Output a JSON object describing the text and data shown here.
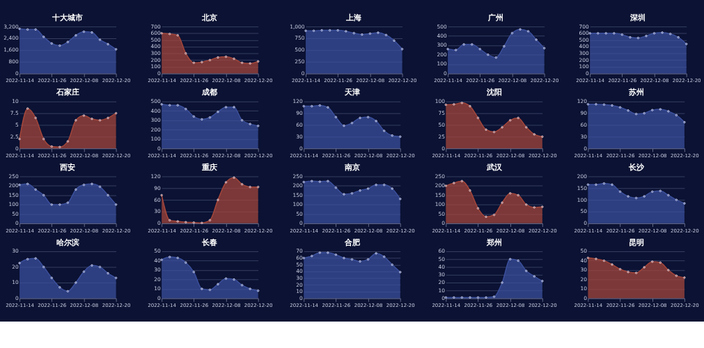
{
  "chart_data": [
    {
      "type": "area",
      "title": "十大城市",
      "x": [
        "2022-11-14",
        "2022-11-17",
        "2022-11-20",
        "2022-11-23",
        "2022-11-26",
        "2022-11-29",
        "2022-12-02",
        "2022-12-05",
        "2022-12-08",
        "2022-12-11",
        "2022-12-14",
        "2022-12-17",
        "2022-12-20"
      ],
      "series": [
        {
          "color": "#3b4f9c",
          "values": [
            3050,
            3000,
            3000,
            2500,
            2050,
            1900,
            2150,
            2600,
            2850,
            2800,
            2300,
            2000,
            1650
          ]
        }
      ],
      "ylim": [
        0,
        3200
      ],
      "yticks": [
        0,
        800,
        {
          "value": 1600,
          "label": "1,600"
        },
        {
          "value": 2400,
          "label": "2,400"
        },
        {
          "value": 3200,
          "label": "3,200"
        }
      ],
      "xlim": [
        "2022-11-14",
        "2022-12-20"
      ],
      "xticks": [
        "2022-11-14",
        "2022-11-26",
        "2022-12-08",
        "2022-12-20"
      ],
      "grid": "y",
      "marker": "circle"
    },
    {
      "type": "area",
      "title": "北京",
      "x": [
        "2022-11-14",
        "2022-11-17",
        "2022-11-20",
        "2022-11-23",
        "2022-11-26",
        "2022-11-29",
        "2022-12-02",
        "2022-12-05",
        "2022-12-08",
        "2022-12-11",
        "2022-12-14",
        "2022-12-17",
        "2022-12-20"
      ],
      "series": [
        {
          "color": "#a3463b",
          "values": [
            600,
            590,
            570,
            300,
            160,
            170,
            200,
            240,
            250,
            220,
            160,
            150,
            180
          ]
        }
      ],
      "ylim": [
        0,
        700
      ],
      "yticks": [
        0,
        100,
        200,
        300,
        400,
        500,
        600,
        700
      ],
      "xlim": [
        "2022-11-14",
        "2022-12-20"
      ],
      "xticks": [
        "2022-11-14",
        "2022-11-26",
        "2022-12-08",
        "2022-12-20"
      ],
      "grid": "y",
      "marker": "circle"
    },
    {
      "type": "area",
      "title": "上海",
      "x": [
        "2022-11-14",
        "2022-11-17",
        "2022-11-20",
        "2022-11-23",
        "2022-11-26",
        "2022-11-29",
        "2022-12-02",
        "2022-12-05",
        "2022-12-08",
        "2022-12-11",
        "2022-12-14",
        "2022-12-17",
        "2022-12-20"
      ],
      "series": [
        {
          "color": "#3b4f9c",
          "values": [
            910,
            910,
            920,
            920,
            920,
            900,
            860,
            830,
            850,
            870,
            820,
            700,
            520
          ]
        }
      ],
      "ylim": [
        0,
        1000
      ],
      "yticks": [
        0,
        250,
        500,
        750,
        {
          "value": 1000,
          "label": "1,000"
        }
      ],
      "xlim": [
        "2022-11-14",
        "2022-12-20"
      ],
      "xticks": [
        "2022-11-14",
        "2022-11-26",
        "2022-12-08",
        "2022-12-20"
      ],
      "grid": "y",
      "marker": "circle"
    },
    {
      "type": "area",
      "title": "广州",
      "x": [
        "2022-11-14",
        "2022-11-17",
        "2022-11-20",
        "2022-11-23",
        "2022-11-26",
        "2022-11-29",
        "2022-12-02",
        "2022-12-05",
        "2022-12-08",
        "2022-12-11",
        "2022-12-14",
        "2022-12-17",
        "2022-12-20"
      ],
      "series": [
        {
          "color": "#3b4f9c",
          "values": [
            260,
            250,
            310,
            310,
            260,
            200,
            170,
            290,
            430,
            470,
            450,
            360,
            270
          ]
        }
      ],
      "ylim": [
        0,
        500
      ],
      "yticks": [
        0,
        100,
        200,
        300,
        400,
        500
      ],
      "xlim": [
        "2022-11-14",
        "2022-12-20"
      ],
      "xticks": [
        "2022-11-14",
        "2022-11-26",
        "2022-12-08",
        "2022-12-20"
      ],
      "grid": "y",
      "marker": "circle"
    },
    {
      "type": "area",
      "title": "深圳",
      "x": [
        "2022-11-14",
        "2022-11-17",
        "2022-11-20",
        "2022-11-23",
        "2022-11-26",
        "2022-11-29",
        "2022-12-02",
        "2022-12-05",
        "2022-12-08",
        "2022-12-11",
        "2022-12-14",
        "2022-12-17",
        "2022-12-20"
      ],
      "series": [
        {
          "color": "#3b4f9c",
          "values": [
            600,
            600,
            600,
            600,
            580,
            540,
            530,
            560,
            600,
            610,
            590,
            540,
            440
          ]
        }
      ],
      "ylim": [
        0,
        700
      ],
      "yticks": [
        0,
        100,
        200,
        300,
        400,
        500,
        600,
        700
      ],
      "xlim": [
        "2022-11-14",
        "2022-12-20"
      ],
      "xticks": [
        "2022-11-14",
        "2022-11-26",
        "2022-12-08",
        "2022-12-20"
      ],
      "grid": "y",
      "marker": "circle"
    },
    {
      "type": "area",
      "title": "石家庄",
      "x": [
        "2022-11-14",
        "2022-11-17",
        "2022-11-20",
        "2022-11-23",
        "2022-11-26",
        "2022-11-29",
        "2022-12-02",
        "2022-12-05",
        "2022-12-08",
        "2022-12-11",
        "2022-12-14",
        "2022-12-17",
        "2022-12-20"
      ],
      "series": [
        {
          "color": "#a3463b",
          "values": [
            2,
            8.5,
            6.5,
            2,
            0.4,
            0.3,
            1.5,
            6,
            7,
            6.3,
            6,
            6.5,
            7.5
          ]
        }
      ],
      "ylim": [
        0,
        10
      ],
      "yticks": [
        0,
        2.5,
        5,
        7.5,
        10
      ],
      "xlim": [
        "2022-11-14",
        "2022-12-20"
      ],
      "xticks": [
        "2022-11-14",
        "2022-11-26",
        "2022-12-08",
        "2022-12-20"
      ],
      "grid": "y",
      "marker": "circle"
    },
    {
      "type": "area",
      "title": "成都",
      "x": [
        "2022-11-14",
        "2022-11-17",
        "2022-11-20",
        "2022-11-23",
        "2022-11-26",
        "2022-11-29",
        "2022-12-02",
        "2022-12-05",
        "2022-12-08",
        "2022-12-11",
        "2022-12-14",
        "2022-12-17",
        "2022-12-20"
      ],
      "series": [
        {
          "color": "#3b4f9c",
          "values": [
            470,
            460,
            460,
            420,
            340,
            310,
            330,
            390,
            440,
            440,
            300,
            260,
            240
          ]
        }
      ],
      "ylim": [
        0,
        500
      ],
      "yticks": [
        0,
        100,
        200,
        300,
        400,
        500
      ],
      "xlim": [
        "2022-11-14",
        "2022-12-20"
      ],
      "xticks": [
        "2022-11-14",
        "2022-11-26",
        "2022-12-08",
        "2022-12-20"
      ],
      "grid": "y",
      "marker": "circle"
    },
    {
      "type": "area",
      "title": "天津",
      "x": [
        "2022-11-14",
        "2022-11-17",
        "2022-11-20",
        "2022-11-23",
        "2022-11-26",
        "2022-11-29",
        "2022-12-02",
        "2022-12-05",
        "2022-12-08",
        "2022-12-11",
        "2022-12-14",
        "2022-12-17",
        "2022-12-20"
      ],
      "series": [
        {
          "color": "#3b4f9c",
          "values": [
            108,
            108,
            110,
            105,
            80,
            58,
            65,
            78,
            80,
            70,
            45,
            33,
            30
          ]
        }
      ],
      "ylim": [
        0,
        120
      ],
      "yticks": [
        0,
        30,
        60,
        90,
        120
      ],
      "xlim": [
        "2022-11-14",
        "2022-12-20"
      ],
      "xticks": [
        "2022-11-14",
        "2022-11-26",
        "2022-12-08",
        "2022-12-20"
      ],
      "grid": "y",
      "marker": "circle"
    },
    {
      "type": "area",
      "title": "沈阳",
      "x": [
        "2022-11-14",
        "2022-11-17",
        "2022-11-20",
        "2022-11-23",
        "2022-11-26",
        "2022-11-29",
        "2022-12-02",
        "2022-12-05",
        "2022-12-08",
        "2022-12-11",
        "2022-12-14",
        "2022-12-17",
        "2022-12-20"
      ],
      "series": [
        {
          "color": "#a3463b",
          "values": [
            93,
            94,
            97,
            90,
            65,
            40,
            35,
            45,
            60,
            65,
            45,
            30,
            25
          ]
        }
      ],
      "ylim": [
        0,
        100
      ],
      "yticks": [
        0,
        25,
        50,
        75,
        100
      ],
      "xlim": [
        "2022-11-14",
        "2022-12-20"
      ],
      "xticks": [
        "2022-11-14",
        "2022-11-26",
        "2022-12-08",
        "2022-12-20"
      ],
      "grid": "y",
      "marker": "circle"
    },
    {
      "type": "area",
      "title": "苏州",
      "x": [
        "2022-11-14",
        "2022-11-17",
        "2022-11-20",
        "2022-11-23",
        "2022-11-26",
        "2022-11-29",
        "2022-12-02",
        "2022-12-05",
        "2022-12-08",
        "2022-12-11",
        "2022-12-14",
        "2022-12-17",
        "2022-12-20"
      ],
      "series": [
        {
          "color": "#3b4f9c",
          "values": [
            113,
            113,
            112,
            110,
            105,
            97,
            88,
            90,
            98,
            100,
            95,
            85,
            67
          ]
        }
      ],
      "ylim": [
        0,
        120
      ],
      "yticks": [
        0,
        30,
        60,
        90,
        120
      ],
      "xlim": [
        "2022-11-14",
        "2022-12-20"
      ],
      "xticks": [
        "2022-11-14",
        "2022-11-26",
        "2022-12-08",
        "2022-12-20"
      ],
      "grid": "y",
      "marker": "circle"
    },
    {
      "type": "area",
      "title": "西安",
      "x": [
        "2022-11-14",
        "2022-11-17",
        "2022-11-20",
        "2022-11-23",
        "2022-11-26",
        "2022-11-29",
        "2022-12-02",
        "2022-12-05",
        "2022-12-08",
        "2022-12-11",
        "2022-12-14",
        "2022-12-17",
        "2022-12-20"
      ],
      "series": [
        {
          "color": "#3b4f9c",
          "values": [
            205,
            210,
            180,
            150,
            100,
            100,
            110,
            180,
            205,
            210,
            195,
            150,
            100
          ]
        }
      ],
      "ylim": [
        0,
        250
      ],
      "yticks": [
        0,
        50,
        100,
        150,
        200,
        250
      ],
      "xlim": [
        "2022-11-14",
        "2022-12-20"
      ],
      "xticks": [
        "2022-11-14",
        "2022-11-26",
        "2022-12-08",
        "2022-12-20"
      ],
      "grid": "y",
      "marker": "circle"
    },
    {
      "type": "area",
      "title": "重庆",
      "x": [
        "2022-11-14",
        "2022-11-17",
        "2022-11-20",
        "2022-11-23",
        "2022-11-26",
        "2022-11-29",
        "2022-12-02",
        "2022-12-05",
        "2022-12-08",
        "2022-12-11",
        "2022-12-14",
        "2022-12-17",
        "2022-12-20"
      ],
      "series": [
        {
          "color": "#a3463b",
          "values": [
            72,
            8,
            5,
            3,
            2,
            1,
            8,
            60,
            105,
            117,
            100,
            93,
            93
          ]
        }
      ],
      "ylim": [
        0,
        120
      ],
      "yticks": [
        0,
        30,
        60,
        90,
        120
      ],
      "xlim": [
        "2022-11-14",
        "2022-12-20"
      ],
      "xticks": [
        "2022-11-14",
        "2022-11-26",
        "2022-12-08",
        "2022-12-20"
      ],
      "grid": "y",
      "marker": "circle"
    },
    {
      "type": "area",
      "title": "南京",
      "x": [
        "2022-11-14",
        "2022-11-17",
        "2022-11-20",
        "2022-11-23",
        "2022-11-26",
        "2022-11-29",
        "2022-12-02",
        "2022-12-05",
        "2022-12-08",
        "2022-12-11",
        "2022-12-14",
        "2022-12-17",
        "2022-12-20"
      ],
      "series": [
        {
          "color": "#3b4f9c",
          "values": [
            220,
            225,
            222,
            225,
            190,
            155,
            160,
            175,
            185,
            205,
            205,
            185,
            130
          ]
        }
      ],
      "ylim": [
        0,
        250
      ],
      "yticks": [
        0,
        50,
        100,
        150,
        200,
        250
      ],
      "xlim": [
        "2022-11-14",
        "2022-12-20"
      ],
      "xticks": [
        "2022-11-14",
        "2022-11-26",
        "2022-12-08",
        "2022-12-20"
      ],
      "grid": "y",
      "marker": "circle"
    },
    {
      "type": "area",
      "title": "武汉",
      "x": [
        "2022-11-14",
        "2022-11-17",
        "2022-11-20",
        "2022-11-23",
        "2022-11-26",
        "2022-11-29",
        "2022-12-02",
        "2022-12-05",
        "2022-12-08",
        "2022-12-11",
        "2022-12-14",
        "2022-12-17",
        "2022-12-20"
      ],
      "series": [
        {
          "color": "#a3463b",
          "values": [
            200,
            215,
            225,
            175,
            80,
            35,
            45,
            110,
            160,
            150,
            100,
            85,
            88
          ]
        }
      ],
      "ylim": [
        0,
        250
      ],
      "yticks": [
        0,
        50,
        100,
        150,
        200,
        250
      ],
      "xlim": [
        "2022-11-14",
        "2022-12-20"
      ],
      "xticks": [
        "2022-11-14",
        "2022-11-26",
        "2022-12-08",
        "2022-12-20"
      ],
      "grid": "y",
      "marker": "circle"
    },
    {
      "type": "area",
      "title": "长沙",
      "x": [
        "2022-11-14",
        "2022-11-17",
        "2022-11-20",
        "2022-11-23",
        "2022-11-26",
        "2022-11-29",
        "2022-12-02",
        "2022-12-05",
        "2022-12-08",
        "2022-12-11",
        "2022-12-14",
        "2022-12-17",
        "2022-12-20"
      ],
      "series": [
        {
          "color": "#3b4f9c",
          "values": [
            165,
            165,
            170,
            165,
            135,
            115,
            108,
            115,
            135,
            138,
            120,
            100,
            85
          ]
        }
      ],
      "ylim": [
        0,
        200
      ],
      "yticks": [
        0,
        50,
        100,
        150,
        200
      ],
      "xlim": [
        "2022-11-14",
        "2022-12-20"
      ],
      "xticks": [
        "2022-11-14",
        "2022-11-26",
        "2022-12-08",
        "2022-12-20"
      ],
      "grid": "y",
      "marker": "circle"
    },
    {
      "type": "area",
      "title": "哈尔滨",
      "x": [
        "2022-11-14",
        "2022-11-17",
        "2022-11-20",
        "2022-11-23",
        "2022-11-26",
        "2022-11-29",
        "2022-12-02",
        "2022-12-05",
        "2022-12-08",
        "2022-12-11",
        "2022-12-14",
        "2022-12-17",
        "2022-12-20"
      ],
      "series": [
        {
          "color": "#3b4f9c",
          "values": [
            22.5,
            25,
            25.5,
            20,
            13,
            7,
            4.5,
            10,
            17,
            21,
            20,
            16,
            13
          ]
        }
      ],
      "ylim": [
        0,
        30
      ],
      "yticks": [
        0,
        10,
        20,
        30
      ],
      "xlim": [
        "2022-11-14",
        "2022-12-20"
      ],
      "xticks": [
        "2022-11-14",
        "2022-11-26",
        "2022-12-08",
        "2022-12-20"
      ],
      "grid": "y",
      "marker": "circle"
    },
    {
      "type": "area",
      "title": "长春",
      "x": [
        "2022-11-14",
        "2022-11-17",
        "2022-11-20",
        "2022-11-23",
        "2022-11-26",
        "2022-11-29",
        "2022-12-02",
        "2022-12-05",
        "2022-12-08",
        "2022-12-11",
        "2022-12-14",
        "2022-12-17",
        "2022-12-20"
      ],
      "series": [
        {
          "color": "#3b4f9c",
          "values": [
            41,
            44,
            43,
            38,
            28,
            10,
            9,
            15,
            21,
            20,
            14,
            10,
            8
          ]
        }
      ],
      "ylim": [
        0,
        50
      ],
      "yticks": [
        0,
        10,
        20,
        30,
        40,
        50
      ],
      "xlim": [
        "2022-11-14",
        "2022-12-20"
      ],
      "xticks": [
        "2022-11-14",
        "2022-11-26",
        "2022-12-08",
        "2022-12-20"
      ],
      "grid": "y",
      "marker": "circle"
    },
    {
      "type": "area",
      "title": "合肥",
      "x": [
        "2022-11-14",
        "2022-11-17",
        "2022-11-20",
        "2022-11-23",
        "2022-11-26",
        "2022-11-29",
        "2022-12-02",
        "2022-12-05",
        "2022-12-08",
        "2022-12-11",
        "2022-12-14",
        "2022-12-17",
        "2022-12-20"
      ],
      "series": [
        {
          "color": "#3b4f9c",
          "values": [
            60,
            63,
            68,
            68,
            65,
            60,
            58,
            55,
            58,
            67,
            62,
            50,
            39
          ]
        }
      ],
      "ylim": [
        0,
        70
      ],
      "yticks": [
        0,
        10,
        20,
        30,
        40,
        50,
        60,
        70
      ],
      "xlim": [
        "2022-11-14",
        "2022-12-20"
      ],
      "xticks": [
        "2022-11-14",
        "2022-11-26",
        "2022-12-08",
        "2022-12-20"
      ],
      "grid": "y",
      "marker": "circle"
    },
    {
      "type": "area",
      "title": "郑州",
      "x": [
        "2022-11-14",
        "2022-11-17",
        "2022-11-20",
        "2022-11-23",
        "2022-11-26",
        "2022-11-29",
        "2022-12-02",
        "2022-12-05",
        "2022-12-08",
        "2022-12-11",
        "2022-12-14",
        "2022-12-17",
        "2022-12-20"
      ],
      "series": [
        {
          "color": "#3b4f9c",
          "values": [
            1,
            1,
            1,
            1,
            1,
            1,
            2,
            20,
            50,
            48,
            35,
            28,
            22
          ]
        }
      ],
      "ylim": [
        0,
        60
      ],
      "yticks": [
        0,
        10,
        20,
        30,
        40,
        50,
        60
      ],
      "xlim": [
        "2022-11-14",
        "2022-12-20"
      ],
      "xticks": [
        "2022-11-14",
        "2022-11-26",
        "2022-12-08",
        "2022-12-20"
      ],
      "grid": "y",
      "marker": "circle"
    },
    {
      "type": "area",
      "title": "昆明",
      "x": [
        "2022-11-14",
        "2022-11-17",
        "2022-11-20",
        "2022-11-23",
        "2022-11-26",
        "2022-11-29",
        "2022-12-02",
        "2022-12-05",
        "2022-12-08",
        "2022-12-11",
        "2022-12-14",
        "2022-12-17",
        "2022-12-20"
      ],
      "series": [
        {
          "color": "#a3463b",
          "values": [
            43,
            42,
            40,
            36,
            31,
            28,
            27,
            33,
            39,
            38,
            30,
            24,
            22
          ]
        }
      ],
      "ylim": [
        0,
        50
      ],
      "yticks": [
        0,
        10,
        20,
        30,
        40,
        50
      ],
      "xlim": [
        "2022-11-14",
        "2022-12-20"
      ],
      "xticks": [
        "2022-11-14",
        "2022-11-26",
        "2022-12-08",
        "2022-12-20"
      ],
      "grid": "y",
      "marker": "circle"
    }
  ]
}
